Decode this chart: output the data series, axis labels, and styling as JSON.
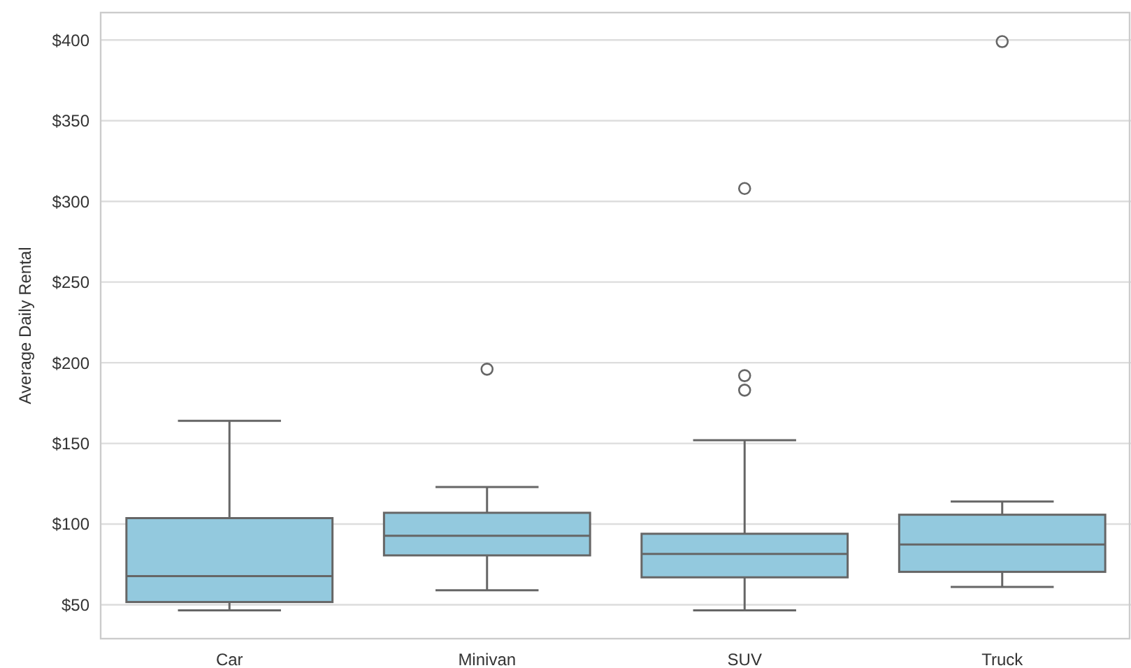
{
  "chart_data": {
    "type": "box",
    "ylabel": "Average Daily Rental",
    "categories": [
      "Car",
      "Minivan",
      "SUV",
      "Truck"
    ],
    "boxes": [
      {
        "low": 46.5,
        "q1": 51.7,
        "median": 67.8,
        "q3": 103.7,
        "high": 164
      },
      {
        "low": 59,
        "q1": 80.6,
        "median": 92.8,
        "q3": 107,
        "high": 123,
        "outliers": [
          196
        ]
      },
      {
        "low": 46.5,
        "q1": 67,
        "median": 81.5,
        "q3": 94,
        "high": 152,
        "outliers": [
          192,
          183,
          308
        ]
      },
      {
        "low": 61,
        "q1": 70.4,
        "median": 87.3,
        "q3": 105.8,
        "high": 114,
        "outliers": [
          399
        ]
      }
    ],
    "color": "#93c9de",
    "ylim": [
      29,
      417
    ],
    "yticks": [
      {
        "value": 50,
        "label": "$50"
      },
      {
        "value": 100,
        "label": "$100"
      },
      {
        "value": 150,
        "label": "$150"
      },
      {
        "value": 200,
        "label": "$200"
      },
      {
        "value": 250,
        "label": "$250"
      },
      {
        "value": 300,
        "label": "$300"
      },
      {
        "value": 350,
        "label": "$350"
      },
      {
        "value": 400,
        "label": "$400"
      }
    ],
    "grid": "y"
  }
}
